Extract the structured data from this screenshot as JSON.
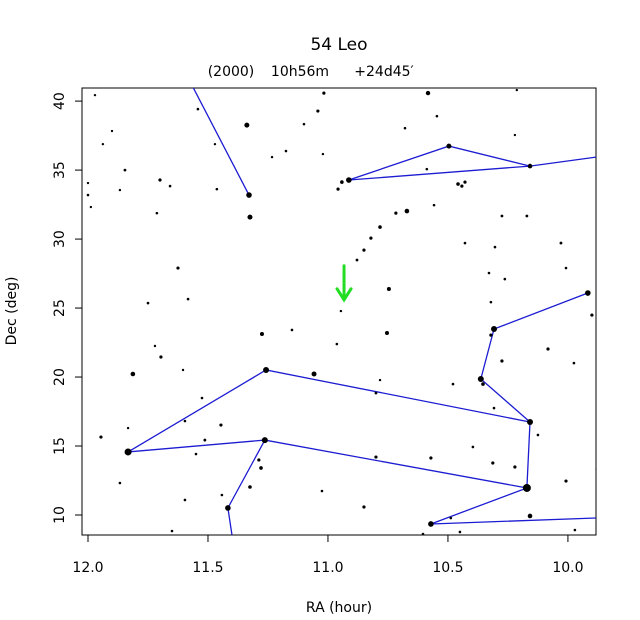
{
  "chart_data": {
    "type": "scatter",
    "title": "54 Leo",
    "subtitle": [
      "(2000)",
      "10h56m",
      "+24d45′"
    ],
    "xlabel": "RA (hour)",
    "ylabel": "Dec (deg)",
    "xlim": [
      12.025,
      9.883
    ],
    "ylim": [
      8.55,
      40.95
    ],
    "xticks": [
      {
        "value": 12,
        "label": "12.0"
      },
      11.5,
      {
        "value": 11,
        "label": "11.0"
      },
      10.5,
      {
        "value": 10,
        "label": "10.0"
      }
    ],
    "yticks": [
      10,
      15,
      20,
      25,
      30,
      35,
      40
    ],
    "stars": {
      "color": "#000000",
      "x": [
        11.971,
        11.542,
        11.9,
        11.938,
        11.338,
        11.017,
        11.042,
        11.1,
        10.583,
        10.213,
        10.679,
        10.546,
        10.221,
        11.175,
        11.233,
        11.021,
        11.471,
        11.846,
        11.7,
        11.658,
        11.867,
        12.0,
        12.0,
        11.988,
        11.463,
        11.329,
        11.325,
        11.713,
        10.958,
        10.913,
        10.942,
        10.496,
        10.588,
        10.458,
        10.442,
        10.429,
        10.158,
        10.558,
        10.671,
        10.717,
        10.783,
        10.821,
        10.85,
        10.879,
        10.429,
        10.304,
        10.275,
        10.171,
        10.029,
        11.625,
        10.746,
        10.329,
        10.263,
        10.321,
        10.008,
        9.917,
        9.9,
        11.75,
        11.583,
        10.946,
        10.754,
        11.275,
        11.15,
        11.721,
        11.696,
        10.963,
        10.308,
        10.321,
        10.275,
        10.083,
        9.975,
        11.813,
        11.604,
        11.258,
        11.058,
        10.783,
        10.8,
        10.479,
        10.363,
        10.354,
        11.525,
        10.308,
        11.596,
        11.833,
        11.946,
        11.833,
        11.446,
        11.513,
        11.263,
        10.158,
        10.125,
        11.55,
        11.288,
        11.279,
        11.325,
        10.8,
        10.571,
        10.396,
        10.313,
        10.221,
        10.171,
        10.008,
        9.879,
        11.867,
        11.442,
        11.596,
        11.417,
        11.025,
        10.85,
        10.158,
        10.571,
        10.488,
        10.604,
        10.45,
        11.65,
        9.971
      ],
      "y": [
        40.43,
        39.42,
        37.83,
        36.88,
        38.26,
        40.58,
        39.28,
        38.33,
        40.58,
        40.8,
        38.04,
        38.91,
        37.54,
        36.38,
        35.94,
        36.16,
        36.88,
        35.0,
        34.28,
        33.84,
        33.55,
        34.06,
        33.19,
        32.32,
        33.62,
        33.19,
        31.59,
        31.88,
        33.62,
        34.28,
        34.13,
        36.74,
        35.07,
        33.99,
        33.84,
        34.13,
        35.29,
        32.46,
        32.03,
        31.88,
        30.87,
        30.07,
        29.2,
        28.48,
        29.71,
        29.42,
        31.67,
        31.67,
        29.71,
        27.9,
        26.38,
        27.54,
        27.1,
        25.43,
        27.9,
        26.09,
        24.49,
        25.36,
        25.65,
        24.78,
        23.19,
        23.12,
        23.41,
        22.25,
        21.45,
        22.39,
        23.48,
        23.04,
        21.16,
        22.03,
        21.01,
        20.22,
        20.51,
        20.51,
        20.22,
        19.78,
        18.84,
        19.49,
        19.86,
        19.49,
        18.48,
        17.75,
        16.81,
        14.57,
        15.65,
        16.3,
        16.52,
        15.43,
        15.43,
        16.74,
        15.8,
        14.42,
        13.99,
        13.41,
        12.03,
        14.2,
        14.13,
        14.93,
        13.77,
        13.48,
        11.96,
        12.46,
        13.33,
        12.32,
        11.45,
        11.09,
        10.51,
        11.74,
        10.58,
        9.93,
        9.35,
        9.78,
        8.62,
        8.77,
        8.84,
        8.91
      ],
      "sizes": [
        1.2,
        1.3,
        1.2,
        1.2,
        2.5,
        1.6,
        1.6,
        1.3,
        2.2,
        1.2,
        1.3,
        1.3,
        1.2,
        1.3,
        1.2,
        1.2,
        1.2,
        1.4,
        1.6,
        1.3,
        1.2,
        1.2,
        1.3,
        1.2,
        1.3,
        2.8,
        2.5,
        1.3,
        1.6,
        2.8,
        1.8,
        2.5,
        1.3,
        1.8,
        1.6,
        1.6,
        2.3,
        1.3,
        2.3,
        1.6,
        1.8,
        1.6,
        1.6,
        1.4,
        1.3,
        1.3,
        1.4,
        1.4,
        1.4,
        1.6,
        2.0,
        1.3,
        1.3,
        1.3,
        1.3,
        2.8,
        1.6,
        1.3,
        1.3,
        1.2,
        2.0,
        2.0,
        1.3,
        1.2,
        1.6,
        1.3,
        3.0,
        1.6,
        1.6,
        1.6,
        1.3,
        2.3,
        1.2,
        3.0,
        2.5,
        1.2,
        1.4,
        1.3,
        3.0,
        1.8,
        1.3,
        1.3,
        1.3,
        3.5,
        1.6,
        1.2,
        1.6,
        1.4,
        3.0,
        3.0,
        1.3,
        1.3,
        1.6,
        1.8,
        1.8,
        1.6,
        1.6,
        1.3,
        1.6,
        1.6,
        4.0,
        1.6,
        1.6,
        1.3,
        1.3,
        1.3,
        2.8,
        1.3,
        1.6,
        2.3,
        2.8,
        1.3,
        1.3,
        1.3,
        1.3,
        1.3
      ]
    },
    "line_color": "#1c1cd2",
    "lines": [
      {
        "x": [
          11.5625,
          11.329
        ],
        "y": [
          41.01,
          33.19
        ]
      },
      {
        "x": [
          10.913,
          10.496,
          10.158,
          9.883
        ],
        "y": [
          34.28,
          36.74,
          35.29,
          35.94
        ]
      },
      {
        "x": [
          10.913,
          10.158
        ],
        "y": [
          34.28,
          35.29
        ]
      },
      {
        "x": [
          9.917,
          10.308,
          10.363,
          10.158,
          11.258,
          11.833,
          11.263,
          10.171,
          10.571,
          9.883
        ],
        "y": [
          26.09,
          23.48,
          19.86,
          16.74,
          20.51,
          14.57,
          15.43,
          11.96,
          9.35,
          9.78
        ]
      },
      {
        "x": [
          10.158,
          10.171
        ],
        "y": [
          16.74,
          11.96
        ]
      },
      {
        "x": [
          11.263,
          11.417,
          11.4
        ],
        "y": [
          15.43,
          10.51,
          8.55
        ]
      }
    ],
    "marker": {
      "x": 10.933,
      "y": 25.6,
      "color": "#22dd22"
    }
  }
}
